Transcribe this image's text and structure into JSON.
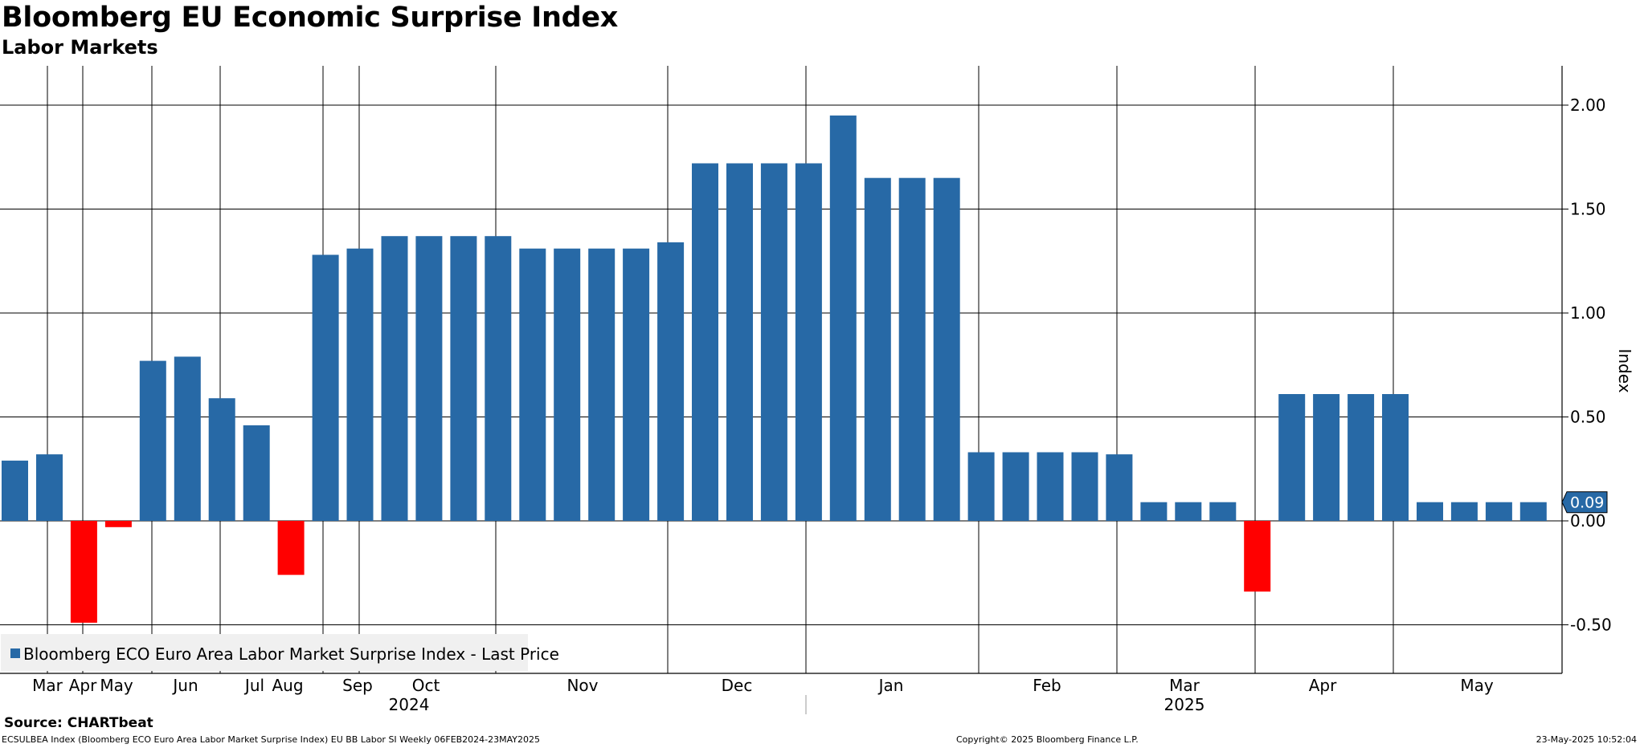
{
  "header": {
    "title": "Bloomberg EU Economic Surprise Index",
    "subtitle": "Labor Markets"
  },
  "footer": {
    "source": "Source: CHARTbeat",
    "ticker_info": "ECSULBEA Index (Bloomberg ECO Euro Area Labor Market Surprise Index) EU BB Labor SI  Weekly 06FEB2024-23MAY2025",
    "copyright": "Copyright© 2025 Bloomberg Finance L.P.",
    "timestamp": "23-May-2025 10:52:04"
  },
  "colors": {
    "positive": "#2769a6",
    "negative": "#ff0000",
    "label_box": "#2769a6",
    "legend_bg": "#f0f0f0"
  },
  "chart_data": {
    "type": "bar",
    "title": "Bloomberg EU Economic Surprise Index",
    "subtitle": "Labor Markets",
    "ylabel": "Index",
    "ylim": [
      -0.73,
      2.19
    ],
    "yticks": [
      2.0,
      1.5,
      1.0,
      0.5,
      0.0,
      -0.5
    ],
    "ytick_labels": [
      "2.00",
      "1.50",
      "1.00",
      "0.50",
      "0.00",
      "-0.50"
    ],
    "legend": "Bloomberg ECO Euro Area Labor Market Surprise Index - Last Price",
    "last_value_label": "0.09",
    "last_value": 0.09,
    "frequency": "Weekly",
    "month_labels": [
      "Mar",
      "Apr",
      "May",
      "Jun",
      "Jul",
      "Aug",
      "Sep",
      "Oct",
      "Nov",
      "Dec",
      "Jan",
      "Feb",
      "Mar",
      "Apr",
      "May"
    ],
    "year_labels": [
      "2024",
      "2025"
    ],
    "series": [
      {
        "name": "Bloomberg ECO Euro Area Labor Market Surprise Index - Last Price",
        "values": [
          0.29,
          0.32,
          -0.49,
          -0.03,
          0.77,
          0.79,
          0.59,
          0.46,
          -0.26,
          1.28,
          1.31,
          1.37,
          1.37,
          1.37,
          1.37,
          1.31,
          1.31,
          1.31,
          1.31,
          1.34,
          1.72,
          1.72,
          1.72,
          1.72,
          1.95,
          1.65,
          1.65,
          1.65,
          0.33,
          0.33,
          0.33,
          0.33,
          0.32,
          0.09,
          0.09,
          0.09,
          -0.34,
          0.61,
          0.61,
          0.61,
          0.61,
          0.09,
          0.09,
          0.09,
          0.09
        ]
      }
    ]
  }
}
